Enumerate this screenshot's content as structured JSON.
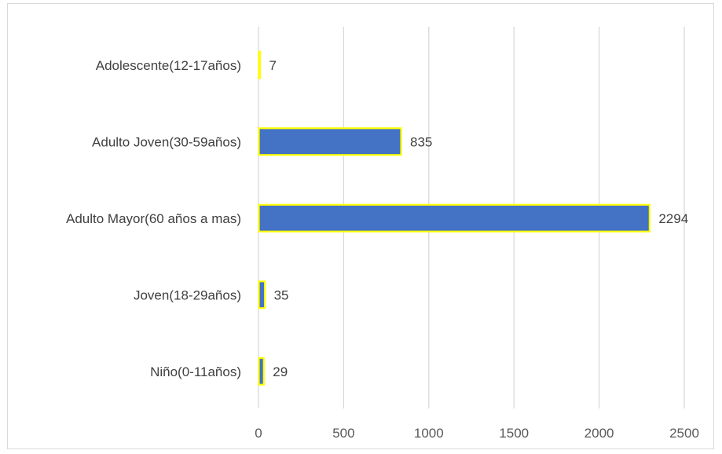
{
  "chart_data": {
    "type": "bar",
    "orientation": "horizontal",
    "categories": [
      "Adolescente(12-17años)",
      "Adulto Joven(30-59años)",
      "Adulto Mayor(60 años a mas)",
      "Joven(18-29años)",
      "Niño(0-11años)"
    ],
    "values": [
      7,
      835,
      2294,
      35,
      29
    ],
    "data_labels": [
      "7",
      "835",
      "2294",
      "35",
      "29"
    ],
    "x_ticks": [
      0,
      500,
      1000,
      1500,
      2000,
      2500
    ],
    "x_tick_labels": [
      "0",
      "500",
      "1000",
      "1500",
      "2000",
      "2500"
    ],
    "xlim": [
      0,
      2500
    ],
    "title": "",
    "xlabel": "",
    "ylabel": "",
    "grid": "vertical",
    "legend": "none",
    "colors": {
      "bar_fill": "#4472c4",
      "bar_outline": "#ffff00",
      "gridline": "#d9d9d9",
      "text": "#404040"
    }
  }
}
